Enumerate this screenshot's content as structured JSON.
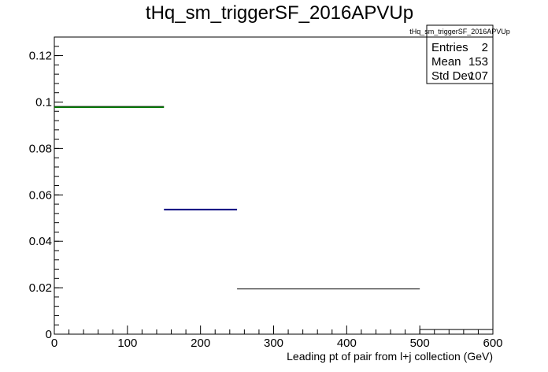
{
  "chart_data": {
    "type": "histogram",
    "title": "tHq_sm_triggerSF_2016APVUp",
    "xlabel": "Leading pt of pair from l+j collection (GeV)",
    "ylabel": "",
    "xlim": [
      0,
      600
    ],
    "ylim": [
      0,
      0.128
    ],
    "x_ticks": [
      0,
      100,
      200,
      300,
      400,
      500,
      600
    ],
    "y_ticks": [
      0,
      0.02,
      0.04,
      0.06,
      0.08,
      0.1,
      0.12
    ],
    "x_tick_labels": [
      "0",
      "100",
      "200",
      "300",
      "400",
      "500",
      "600"
    ],
    "y_tick_labels": [
      "0",
      "0.02",
      "0.04",
      "0.06",
      "0.08",
      "0.1",
      "0.12"
    ],
    "bins": [
      {
        "x_low": 0,
        "x_high": 150,
        "y": 0.0978,
        "color": "#008000"
      },
      {
        "x_low": 150,
        "x_high": 250,
        "y": 0.0537,
        "color": "#000080"
      },
      {
        "x_low": 250,
        "x_high": 500,
        "y": 0.0195,
        "color": "#000000"
      },
      {
        "x_low": 500,
        "x_high": 600,
        "y": 0.002,
        "color": "#000000"
      }
    ],
    "stats": {
      "header": "tHq_sm_triggerSF_2016APVUp",
      "rows": [
        {
          "label": "Entries",
          "value": "2"
        },
        {
          "label": "Mean",
          "value": "153"
        },
        {
          "label": "Std Dev",
          "value": "107"
        }
      ]
    },
    "grid": false
  }
}
